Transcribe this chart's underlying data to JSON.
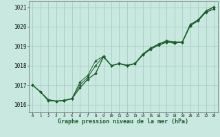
{
  "title": "Graphe pression niveau de la mer (hPa)",
  "bg_color": "#c8e8e0",
  "grid_color": "#a0c8bc",
  "line_color": "#1a5c2a",
  "xlim": [
    -0.5,
    23.5
  ],
  "ylim": [
    1015.6,
    1021.3
  ],
  "yticks": [
    1016,
    1017,
    1018,
    1019,
    1020,
    1021
  ],
  "xticks": [
    0,
    1,
    2,
    3,
    4,
    5,
    6,
    7,
    8,
    9,
    10,
    11,
    12,
    13,
    14,
    15,
    16,
    17,
    18,
    19,
    20,
    21,
    22,
    23
  ],
  "series": [
    [
      1017.0,
      1016.65,
      1016.25,
      1016.18,
      1016.2,
      1016.3,
      1016.85,
      1017.3,
      1017.6,
      1018.45,
      1018.0,
      1018.1,
      1018.0,
      1018.1,
      1018.55,
      1018.85,
      1019.05,
      1019.2,
      1019.15,
      1019.2,
      1020.05,
      1020.3,
      1020.75,
      1020.9
    ],
    [
      1017.0,
      1016.65,
      1016.25,
      1016.18,
      1016.2,
      1016.3,
      1017.15,
      1017.5,
      1018.25,
      1018.48,
      1018.0,
      1018.1,
      1018.0,
      1018.1,
      1018.55,
      1018.85,
      1019.05,
      1019.2,
      1019.15,
      1019.2,
      1020.05,
      1020.3,
      1020.75,
      1020.9
    ],
    [
      1017.0,
      1016.65,
      1016.2,
      1016.18,
      1016.2,
      1016.3,
      1016.85,
      1017.3,
      1017.6,
      1018.45,
      1018.0,
      1018.1,
      1018.0,
      1018.1,
      1018.6,
      1018.9,
      1019.1,
      1019.25,
      1019.2,
      1019.2,
      1020.1,
      1020.35,
      1020.8,
      1021.0
    ],
    [
      1017.0,
      1016.65,
      1016.2,
      1016.18,
      1016.22,
      1016.32,
      1017.0,
      1017.4,
      1018.0,
      1018.48,
      1018.0,
      1018.12,
      1018.02,
      1018.12,
      1018.6,
      1018.9,
      1019.12,
      1019.28,
      1019.22,
      1019.22,
      1020.12,
      1020.35,
      1020.82,
      1021.02
    ]
  ]
}
